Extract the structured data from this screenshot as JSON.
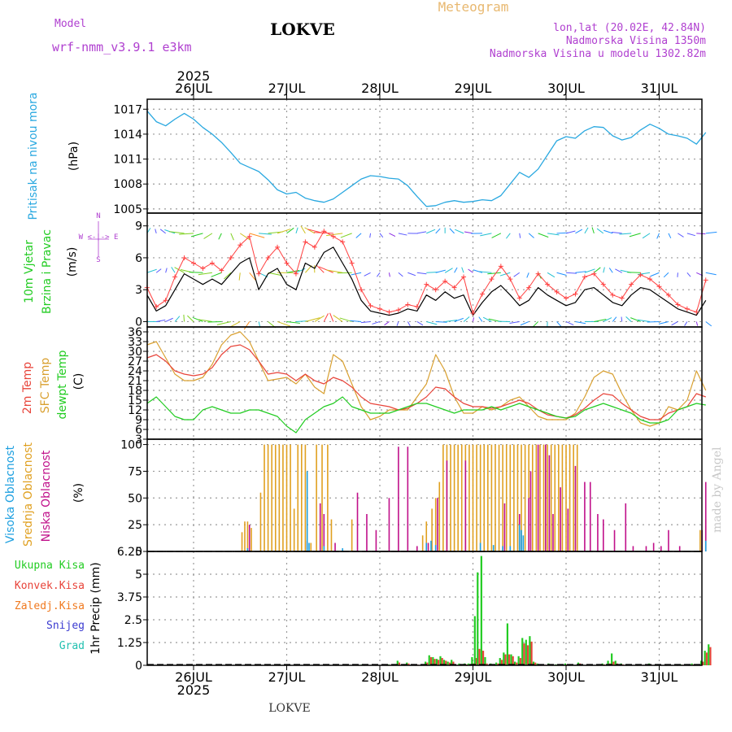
{
  "header": {
    "model_label": "Model",
    "model_name": "wrf-nmm_v3.9.1 e3km",
    "station": "LOKVE",
    "product": "Meteogram",
    "coords": "lon,lat (20.02E, 42.84N)",
    "elevation": "Nadmorska Visina 1350m",
    "model_elevation": "Nadmorska Visina u modelu 1302.82m",
    "footer_station": "LOKVE",
    "watermark": "made by Angel"
  },
  "colors": {
    "pressure": "#29a8e0",
    "wind_speed": "#000000",
    "gust": "#ff4040",
    "t2m": "#e8443a",
    "tsfc": "#d9a030",
    "dewpt": "#22cc22",
    "cloud_high": "#1ea0e0",
    "cloud_mid": "#e0a020",
    "cloud_low": "#c0108a",
    "precip_total": "#22cc22",
    "precip_conv": "#e8443a",
    "precip_frozen": "#f07a20",
    "snow": "#3a3ad0",
    "hail": "#22c0b0",
    "label_purple": "#b040d0"
  },
  "time_axis": {
    "year": "2025",
    "days": [
      "26JUL",
      "27JUL",
      "28JUL",
      "29JUL",
      "30JUL",
      "31JUL"
    ],
    "start_day_offset": -0.5,
    "end_day_offset": 5.55
  },
  "chart_data": [
    {
      "type": "line",
      "name": "pressure",
      "ylabel": "Pritisak na nivou mora",
      "units": "(hPa)",
      "ylim": [
        1004.5,
        1018.2
      ],
      "yticks": [
        "1017",
        "1014",
        "1011",
        "1008",
        "1005"
      ],
      "ytick_values": [
        1017,
        1014,
        1011,
        1008,
        1005
      ],
      "x_days": [
        -0.5,
        -0.4,
        -0.3,
        -0.2,
        -0.1,
        0.0,
        0.1,
        0.2,
        0.3,
        0.4,
        0.5,
        0.6,
        0.7,
        0.8,
        0.9,
        1.0,
        1.1,
        1.2,
        1.3,
        1.4,
        1.5,
        1.6,
        1.7,
        1.8,
        1.9,
        2.0,
        2.1,
        2.2,
        2.3,
        2.4,
        2.5,
        2.6,
        2.7,
        2.8,
        2.9,
        3.0,
        3.1,
        3.2,
        3.3,
        3.4,
        3.5,
        3.6,
        3.7,
        3.8,
        3.9,
        4.0,
        4.1,
        4.2,
        4.3,
        4.4,
        4.5,
        4.6,
        4.7,
        4.8,
        4.9,
        5.0,
        5.1,
        5.2,
        5.3,
        5.4,
        5.5
      ],
      "values": [
        1016.8,
        1015.5,
        1015.0,
        1015.8,
        1016.5,
        1015.8,
        1014.8,
        1014.0,
        1013.0,
        1011.8,
        1010.5,
        1010.0,
        1009.5,
        1008.5,
        1007.3,
        1006.8,
        1007.0,
        1006.3,
        1006.0,
        1005.8,
        1006.2,
        1007.0,
        1007.8,
        1008.6,
        1009.0,
        1008.9,
        1008.7,
        1008.6,
        1007.8,
        1006.5,
        1005.3,
        1005.4,
        1005.8,
        1006.0,
        1005.8,
        1005.9,
        1006.1,
        1006.0,
        1006.6,
        1008.0,
        1009.4,
        1008.8,
        1009.8,
        1011.5,
        1013.2,
        1013.7,
        1013.5,
        1014.4,
        1014.9,
        1014.8,
        1013.8,
        1013.3,
        1013.6,
        1014.5,
        1015.2,
        1014.7,
        1014.0,
        1013.8,
        1013.5,
        1012.8,
        1014.2
      ]
    },
    {
      "type": "line",
      "name": "wind",
      "ylabel": "10m Vjetar",
      "ylabel2": "Brzina i Pravac",
      "units": "(m/s)",
      "compass_label": "W <-|-> E",
      "compass_n": "N",
      "compass_s": "S",
      "ylim": [
        -0.5,
        10.2
      ],
      "yticks": [
        "9",
        "6",
        "3",
        "0"
      ],
      "ytick_values": [
        9,
        6,
        3,
        0
      ],
      "arrow_rows": [
        0,
        4.6,
        8.3
      ],
      "x_days": [
        -0.5,
        -0.4,
        -0.3,
        -0.2,
        -0.1,
        0.0,
        0.1,
        0.2,
        0.3,
        0.4,
        0.5,
        0.6,
        0.7,
        0.8,
        0.9,
        1.0,
        1.1,
        1.2,
        1.3,
        1.4,
        1.5,
        1.6,
        1.7,
        1.8,
        1.9,
        2.0,
        2.1,
        2.2,
        2.3,
        2.4,
        2.5,
        2.6,
        2.7,
        2.8,
        2.9,
        3.0,
        3.1,
        3.2,
        3.3,
        3.4,
        3.5,
        3.6,
        3.7,
        3.8,
        3.9,
        4.0,
        4.1,
        4.2,
        4.3,
        4.4,
        4.5,
        4.6,
        4.7,
        4.8,
        4.9,
        5.0,
        5.1,
        5.2,
        5.3,
        5.4,
        5.5
      ],
      "speed": [
        2.5,
        1.0,
        1.5,
        3.0,
        4.5,
        4.0,
        3.5,
        4.0,
        3.5,
        4.5,
        5.5,
        6.0,
        3.0,
        4.5,
        5.0,
        3.5,
        3.0,
        5.5,
        5.0,
        6.5,
        7.0,
        5.5,
        4.0,
        2.0,
        1.0,
        0.8,
        0.6,
        0.8,
        1.2,
        1.0,
        2.5,
        2.0,
        2.8,
        2.2,
        2.5,
        0.6,
        1.8,
        2.8,
        3.4,
        2.5,
        1.5,
        2.0,
        3.2,
        2.5,
        2.0,
        1.5,
        1.8,
        3.0,
        3.2,
        2.5,
        1.8,
        1.5,
        2.5,
        3.2,
        3.0,
        2.4,
        1.8,
        1.2,
        0.9,
        0.6,
        2.0
      ],
      "gust": [
        3.2,
        1.4,
        2.0,
        4.2,
        6.0,
        5.5,
        5.0,
        5.5,
        4.8,
        6.0,
        7.2,
        8.0,
        4.5,
        6.0,
        7.0,
        5.5,
        4.5,
        7.5,
        7.0,
        8.5,
        8.0,
        7.5,
        5.5,
        3.0,
        1.5,
        1.2,
        0.9,
        1.1,
        1.6,
        1.4,
        3.5,
        3.0,
        3.8,
        3.2,
        4.2,
        0.8,
        2.6,
        4.0,
        5.2,
        4.0,
        2.2,
        3.2,
        4.5,
        3.5,
        2.8,
        2.2,
        2.6,
        4.2,
        4.5,
        3.5,
        2.5,
        2.2,
        3.5,
        4.4,
        4.0,
        3.3,
        2.5,
        1.6,
        1.2,
        0.9,
        3.9
      ]
    },
    {
      "type": "line",
      "name": "temperature",
      "ylabel": "2m Temp",
      "ylabel2": "SFC Temp",
      "ylabel3": "dewpt Temp",
      "units": "(C)",
      "ylim": [
        3,
        37.5
      ],
      "yticks": [
        "36",
        "33",
        "30",
        "27",
        "24",
        "21",
        "18",
        "15",
        "12",
        "9",
        "6",
        "3"
      ],
      "ytick_values": [
        36,
        33,
        30,
        27,
        24,
        21,
        18,
        15,
        12,
        9,
        6,
        3
      ],
      "x_days": [
        -0.5,
        -0.4,
        -0.3,
        -0.2,
        -0.1,
        0.0,
        0.1,
        0.2,
        0.3,
        0.4,
        0.5,
        0.6,
        0.7,
        0.8,
        0.9,
        1.0,
        1.1,
        1.2,
        1.3,
        1.4,
        1.5,
        1.6,
        1.7,
        1.8,
        1.9,
        2.0,
        2.1,
        2.2,
        2.3,
        2.4,
        2.5,
        2.6,
        2.7,
        2.8,
        2.9,
        3.0,
        3.1,
        3.2,
        3.3,
        3.4,
        3.5,
        3.6,
        3.7,
        3.8,
        3.9,
        4.0,
        4.1,
        4.2,
        4.3,
        4.4,
        4.5,
        4.6,
        4.7,
        4.8,
        4.9,
        5.0,
        5.1,
        5.2,
        5.3,
        5.4,
        5.5
      ],
      "t2m": [
        28,
        29,
        27,
        24,
        23,
        22.5,
        23,
        25,
        29,
        31.5,
        32,
        30.5,
        27,
        23,
        23.5,
        23,
        21,
        23,
        21,
        20,
        22,
        21,
        19,
        16,
        14,
        13.5,
        13,
        12,
        12.5,
        14,
        16,
        19,
        18.5,
        16,
        14,
        13,
        13,
        12.5,
        13,
        14,
        15,
        14,
        12,
        10.5,
        10,
        9.5,
        10.5,
        12.5,
        15,
        17,
        16.5,
        14,
        12,
        10,
        9,
        9,
        11,
        12,
        13,
        17,
        16
      ],
      "tsfc": [
        32,
        33,
        28,
        23,
        21,
        21,
        22,
        26,
        32,
        35,
        36,
        33,
        27,
        21,
        21.5,
        22,
        20,
        23,
        19,
        17,
        29,
        27,
        20,
        13,
        9,
        10,
        12,
        12,
        12,
        16,
        20,
        29,
        24,
        16,
        11,
        11,
        13,
        12,
        13,
        15,
        16,
        13,
        10,
        9,
        9,
        9,
        11,
        16,
        22,
        24,
        23,
        17,
        12,
        8,
        7,
        8,
        13,
        12,
        15,
        24,
        18
      ],
      "dewpt": [
        14,
        16,
        13,
        10,
        9,
        9,
        12,
        13,
        12,
        11,
        11,
        12,
        12,
        11,
        10,
        7,
        5,
        9,
        11,
        13,
        14,
        16,
        13,
        12,
        11,
        11,
        11,
        12,
        13,
        14,
        14,
        13,
        12,
        11,
        12,
        12,
        12,
        13,
        12,
        13,
        14,
        13,
        12,
        11,
        10,
        9.5,
        10,
        12,
        13,
        14,
        13,
        12,
        11,
        9,
        8,
        8,
        9,
        12,
        13,
        14,
        13.5
      ]
    },
    {
      "type": "bar",
      "name": "cloud",
      "ylabel": "Visoka Oblacnost",
      "ylabel2": "Srednja Oblacnost",
      "ylabel3": "Niska Oblacnost",
      "units": "(%)",
      "ylim": [
        0,
        105
      ],
      "yticks": [
        "100",
        "75",
        "50",
        "25",
        "0"
      ],
      "ytick_values": [
        100,
        75,
        50,
        25,
        0
      ],
      "mid_x": [
        0.52,
        0.55,
        0.58,
        0.62,
        0.72,
        0.76,
        0.8,
        0.84,
        0.88,
        0.92,
        0.96,
        1.0,
        1.04,
        1.08,
        1.12,
        1.16,
        1.2,
        1.26,
        1.32,
        1.38,
        1.44,
        1.48,
        1.7,
        2.46,
        2.5,
        2.56,
        2.6,
        2.64,
        2.68,
        2.72,
        2.76,
        2.8,
        2.84,
        2.88,
        2.92,
        2.96,
        3.0,
        3.04,
        3.08,
        3.12,
        3.16,
        3.2,
        3.24,
        3.28,
        3.32,
        3.36,
        3.4,
        3.44,
        3.48,
        3.52,
        3.56,
        3.6,
        3.64,
        3.68,
        3.72,
        3.76,
        3.8,
        3.84,
        3.88,
        3.92,
        3.96,
        4.0,
        4.04,
        4.08,
        4.12,
        5.44,
        5.5
      ],
      "mid_values": [
        18,
        28,
        28,
        22,
        55,
        100,
        100,
        100,
        100,
        100,
        100,
        100,
        100,
        40,
        100,
        100,
        100,
        8,
        100,
        100,
        100,
        30,
        30,
        15,
        28,
        40,
        50,
        65,
        100,
        100,
        100,
        100,
        100,
        100,
        100,
        100,
        100,
        100,
        100,
        100,
        100,
        100,
        100,
        100,
        100,
        100,
        100,
        100,
        100,
        100,
        100,
        100,
        100,
        100,
        100,
        100,
        100,
        100,
        100,
        100,
        100,
        100,
        100,
        100,
        100,
        20,
        30
      ],
      "low_x": [
        0.6,
        1.22,
        1.36,
        1.4,
        1.52,
        1.76,
        1.86,
        1.96,
        2.1,
        2.2,
        2.3,
        2.4,
        2.52,
        2.62,
        2.72,
        2.92,
        3.34,
        3.5,
        3.6,
        3.62,
        3.7,
        3.78,
        3.82,
        3.86,
        3.94,
        4.02,
        4.1,
        4.2,
        4.26,
        4.34,
        4.4,
        4.52,
        4.64,
        4.72,
        4.86,
        4.94,
        5.02,
        5.1,
        5.22,
        5.46,
        5.5
      ],
      "low_values": [
        25,
        10,
        45,
        35,
        8,
        55,
        35,
        20,
        50,
        98,
        98,
        5,
        8,
        50,
        85,
        85,
        45,
        35,
        50,
        75,
        100,
        100,
        90,
        35,
        60,
        40,
        80,
        65,
        65,
        35,
        30,
        20,
        45,
        5,
        5,
        8,
        5,
        20,
        5,
        20,
        65
      ],
      "high_x": [
        0.58,
        1.22,
        1.24,
        1.4,
        1.6,
        2.5,
        2.55,
        2.6,
        3.08,
        3.22,
        3.32,
        3.4,
        3.5,
        3.52,
        3.54,
        5.5
      ],
      "high_values": [
        3,
        75,
        8,
        5,
        3,
        8,
        10,
        6,
        8,
        6,
        5,
        5,
        25,
        20,
        15,
        10
      ]
    },
    {
      "type": "bar",
      "name": "precip",
      "ylabel": "1hr Precip (mm)",
      "legend": [
        "Ukupna Kisa",
        "Konvek.Kisa",
        "Zaledj.Kisa",
        "Snijeg",
        "Grad"
      ],
      "ylim": [
        0,
        6.25
      ],
      "yticks": [
        "6.25",
        "5",
        "3.75",
        "2.5",
        "1.25",
        "0"
      ],
      "ytick_values": [
        6.25,
        5,
        3.75,
        2.5,
        1.25,
        0
      ],
      "x_days": [
        1.1,
        1.82,
        2.1,
        2.2,
        2.3,
        2.4,
        2.5,
        2.54,
        2.58,
        2.62,
        2.66,
        2.7,
        2.74,
        2.78,
        2.86,
        2.92,
        2.96,
        3.0,
        3.03,
        3.06,
        3.1,
        3.14,
        3.2,
        3.26,
        3.3,
        3.34,
        3.38,
        3.42,
        3.46,
        3.5,
        3.54,
        3.58,
        3.62,
        3.66,
        3.7,
        3.76,
        3.82,
        3.9,
        4.0,
        4.14,
        4.24,
        4.4,
        4.46,
        4.5,
        4.54,
        4.6,
        4.8,
        4.9,
        5.0,
        5.24,
        5.36,
        5.46,
        5.5,
        5.54
      ],
      "total": [
        0.05,
        0.05,
        0.05,
        0.25,
        0.15,
        0.05,
        0.2,
        0.55,
        0.45,
        0.35,
        0.5,
        0.3,
        0.2,
        0.3,
        0.1,
        0.1,
        0.1,
        0.45,
        2.7,
        5.1,
        6.0,
        0.45,
        0.1,
        0.15,
        0.4,
        0.7,
        2.3,
        0.6,
        0.2,
        0.5,
        1.5,
        1.4,
        1.6,
        0.2,
        0.1,
        0.05,
        0.1,
        0.05,
        0.1,
        0.15,
        0.05,
        0.1,
        0.25,
        0.65,
        0.25,
        0.1,
        0.05,
        0.1,
        0.05,
        0.05,
        0.1,
        0.25,
        0.8,
        1.15
      ],
      "conv": [
        0.02,
        0.02,
        0.03,
        0.15,
        0.1,
        0.03,
        0.15,
        0.45,
        0.35,
        0.3,
        0.4,
        0.25,
        0.15,
        0.2,
        0.05,
        0.05,
        0.05,
        0.1,
        0.4,
        0.9,
        0.8,
        0.1,
        0.05,
        0.1,
        0.3,
        0.6,
        0.6,
        0.5,
        0.15,
        0.4,
        1.2,
        1.1,
        1.3,
        0.15,
        0.05,
        0.03,
        0.05,
        0.03,
        0.05,
        0.1,
        0.03,
        0.05,
        0.1,
        0.2,
        0.1,
        0.05,
        0.03,
        0.05,
        0.03,
        0.03,
        0.05,
        0.2,
        0.7,
        1.0
      ]
    }
  ]
}
